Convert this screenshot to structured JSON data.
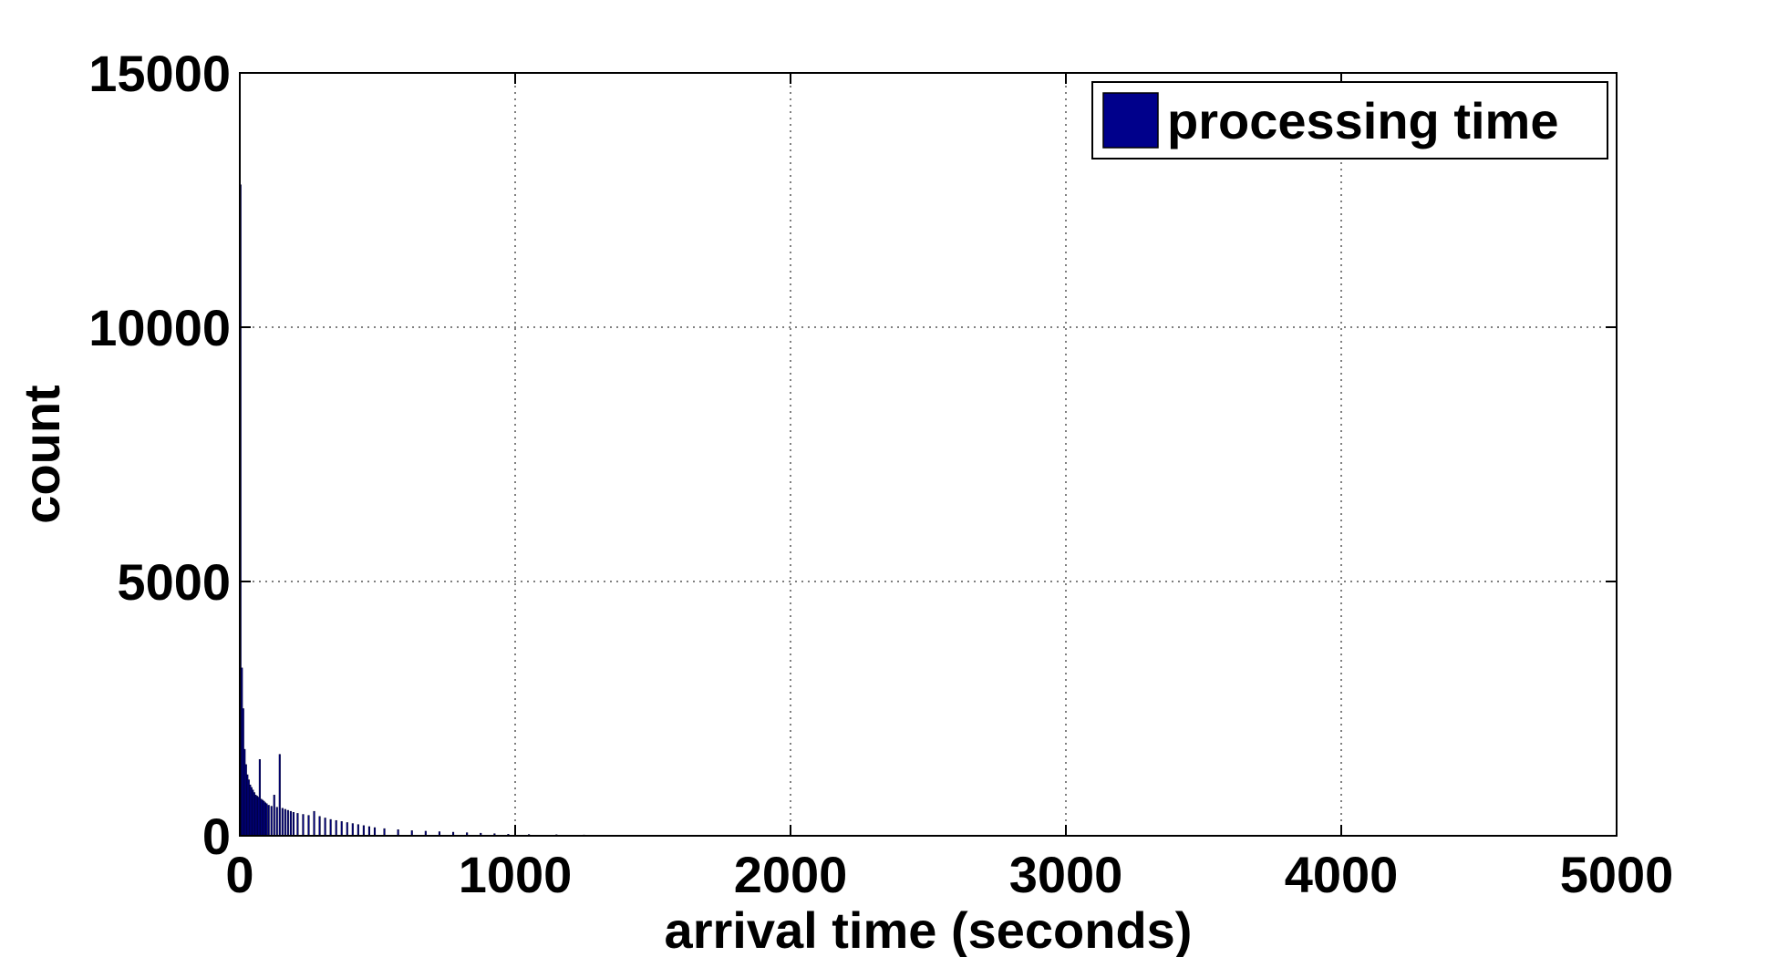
{
  "chart_data": {
    "type": "bar",
    "title": "",
    "xlabel": "arrival time (seconds)",
    "ylabel": "count",
    "xlim": [
      0,
      5000
    ],
    "ylim": [
      0,
      15000
    ],
    "xticks": [
      0,
      1000,
      2000,
      3000,
      4000,
      5000
    ],
    "xtick_labels": [
      "0",
      "1000",
      "2000",
      "3000",
      "4000",
      "5000"
    ],
    "yticks": [
      0,
      5000,
      10000,
      15000
    ],
    "ytick_labels": [
      "0",
      "5000",
      "10000",
      "15000"
    ],
    "grid": true,
    "legend_position": "top-right",
    "series": [
      {
        "name": "processing time",
        "color": "#00008b",
        "bin_width": 5,
        "x": [
          2.5,
          7.5,
          12.5,
          17.5,
          22.5,
          27.5,
          32.5,
          37.5,
          42.5,
          47.5,
          52.5,
          57.5,
          62.5,
          67.5,
          72.5,
          77.5,
          82.5,
          87.5,
          92.5,
          97.5,
          105,
          115,
          125,
          135,
          145,
          155,
          165,
          175,
          185,
          195,
          210,
          230,
          250,
          270,
          290,
          310,
          330,
          350,
          370,
          390,
          410,
          430,
          450,
          470,
          490,
          525,
          575,
          625,
          675,
          725,
          775,
          825,
          875,
          925,
          975,
          1050,
          1150,
          1250,
          1350,
          1450
        ],
        "values": [
          12800,
          3300,
          2500,
          1700,
          1400,
          1200,
          1100,
          1000,
          950,
          900,
          850,
          800,
          780,
          760,
          1500,
          720,
          700,
          680,
          650,
          630,
          600,
          580,
          800,
          560,
          1600,
          540,
          520,
          500,
          480,
          460,
          440,
          420,
          400,
          480,
          380,
          350,
          320,
          300,
          280,
          260,
          240,
          220,
          200,
          180,
          160,
          140,
          120,
          100,
          90,
          80,
          70,
          60,
          50,
          40,
          30,
          25,
          20,
          15,
          10,
          5
        ]
      }
    ]
  }
}
